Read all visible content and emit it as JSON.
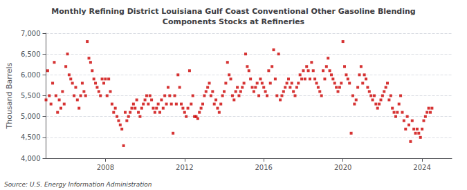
{
  "chart_data": {
    "type": "scatter",
    "title": "Monthly Refining District Louisiana Gulf Coast Conventional Other Gasoline Blending\nComponents Stocks at Refineries",
    "ylabel": "Thousand Barrels",
    "annotations": [
      "Source: U.S. Energy Information Administration"
    ],
    "color": "#cc0000",
    "marker": "square",
    "grid": true,
    "ylim": [
      4000,
      7000
    ],
    "yticks": [
      {
        "value": 4000,
        "label": "4,000"
      },
      {
        "value": 4500,
        "label": "4,500"
      },
      {
        "value": 5000,
        "label": "5,000"
      },
      {
        "value": 5500,
        "label": "5,500"
      },
      {
        "value": 6000,
        "label": "6,000"
      },
      {
        "value": 6500,
        "label": "6,500"
      },
      {
        "value": 7000,
        "label": "7,000"
      }
    ],
    "xlim": [
      2005.0,
      2025.5
    ],
    "xticks": [
      2008,
      2012,
      2016,
      2020,
      2024
    ],
    "x": [
      2005.0,
      2005.083,
      2005.167,
      2005.25,
      2005.333,
      2005.417,
      2005.5,
      2005.583,
      2005.667,
      2005.75,
      2005.833,
      2005.917,
      2006.0,
      2006.083,
      2006.167,
      2006.25,
      2006.333,
      2006.417,
      2006.5,
      2006.583,
      2006.667,
      2006.75,
      2006.833,
      2006.917,
      2007.0,
      2007.083,
      2007.167,
      2007.25,
      2007.333,
      2007.417,
      2007.5,
      2007.583,
      2007.667,
      2007.75,
      2007.833,
      2007.917,
      2008.0,
      2008.083,
      2008.167,
      2008.25,
      2008.333,
      2008.417,
      2008.5,
      2008.583,
      2008.667,
      2008.75,
      2008.833,
      2008.917,
      2009.0,
      2009.083,
      2009.167,
      2009.25,
      2009.333,
      2009.417,
      2009.5,
      2009.583,
      2009.667,
      2009.75,
      2009.833,
      2009.917,
      2010.0,
      2010.083,
      2010.167,
      2010.25,
      2010.333,
      2010.417,
      2010.5,
      2010.583,
      2010.667,
      2010.75,
      2010.833,
      2010.917,
      2011.0,
      2011.083,
      2011.167,
      2011.25,
      2011.333,
      2011.417,
      2011.5,
      2011.583,
      2011.667,
      2011.75,
      2011.833,
      2011.917,
      2012.0,
      2012.083,
      2012.167,
      2012.25,
      2012.333,
      2012.417,
      2012.5,
      2012.583,
      2012.667,
      2012.75,
      2012.833,
      2012.917,
      2013.0,
      2013.083,
      2013.167,
      2013.25,
      2013.333,
      2013.417,
      2013.5,
      2013.583,
      2013.667,
      2013.75,
      2013.833,
      2013.917,
      2014.0,
      2014.083,
      2014.167,
      2014.25,
      2014.333,
      2014.417,
      2014.5,
      2014.583,
      2014.667,
      2014.75,
      2014.833,
      2014.917,
      2015.0,
      2015.083,
      2015.167,
      2015.25,
      2015.333,
      2015.417,
      2015.5,
      2015.583,
      2015.667,
      2015.75,
      2015.833,
      2015.917,
      2016.0,
      2016.083,
      2016.167,
      2016.25,
      2016.333,
      2016.417,
      2016.5,
      2016.583,
      2016.667,
      2016.75,
      2016.833,
      2016.917,
      2017.0,
      2017.083,
      2017.167,
      2017.25,
      2017.333,
      2017.417,
      2017.5,
      2017.583,
      2017.667,
      2017.75,
      2017.833,
      2017.917,
      2018.0,
      2018.083,
      2018.167,
      2018.25,
      2018.333,
      2018.417,
      2018.5,
      2018.583,
      2018.667,
      2018.75,
      2018.833,
      2018.917,
      2019.0,
      2019.083,
      2019.167,
      2019.25,
      2019.333,
      2019.417,
      2019.5,
      2019.583,
      2019.667,
      2019.75,
      2019.833,
      2019.917,
      2020.0,
      2020.083,
      2020.167,
      2020.25,
      2020.333,
      2020.417,
      2020.5,
      2020.583,
      2020.667,
      2020.75,
      2020.833,
      2020.917,
      2021.0,
      2021.083,
      2021.167,
      2021.25,
      2021.333,
      2021.417,
      2021.5,
      2021.583,
      2021.667,
      2021.75,
      2021.833,
      2021.917,
      2022.0,
      2022.083,
      2022.167,
      2022.25,
      2022.333,
      2022.417,
      2022.5,
      2022.583,
      2022.667,
      2022.75,
      2022.833,
      2022.917,
      2023.0,
      2023.083,
      2023.167,
      2023.25,
      2023.333,
      2023.417,
      2023.5,
      2023.583,
      2023.667,
      2023.75,
      2023.833,
      2023.917,
      2024.0,
      2024.083,
      2024.167,
      2024.25,
      2024.333,
      2024.417,
      2024.5
    ],
    "values": [
      5400,
      6100,
      5500,
      5300,
      5800,
      6300,
      5500,
      5100,
      5400,
      5200,
      5600,
      5300,
      6200,
      6500,
      6000,
      5900,
      5800,
      5500,
      5700,
      5400,
      5200,
      5500,
      5800,
      5600,
      5500,
      6800,
      6400,
      6300,
      6100,
      5900,
      5800,
      5700,
      5600,
      5500,
      5900,
      5800,
      5900,
      5500,
      5900,
      5600,
      5300,
      5100,
      5200,
      5000,
      4900,
      4800,
      4700,
      4300,
      5100,
      4900,
      5000,
      5100,
      5200,
      5300,
      5200,
      5400,
      5100,
      5000,
      5200,
      5300,
      5400,
      5500,
      5300,
      5500,
      5400,
      5200,
      5100,
      5200,
      5300,
      5100,
      5400,
      5200,
      5500,
      5300,
      5700,
      5500,
      5300,
      4600,
      5500,
      5300,
      6000,
      5700,
      5300,
      5200,
      5100,
      5000,
      5200,
      6100,
      5300,
      5500,
      5000,
      5000,
      4950,
      5100,
      5200,
      5300,
      5500,
      5600,
      5700,
      5800,
      5500,
      5600,
      5300,
      5400,
      5200,
      5100,
      5300,
      5500,
      5600,
      5800,
      6300,
      6000,
      5900,
      5500,
      5400,
      5600,
      5700,
      5500,
      5600,
      5700,
      5800,
      6500,
      6200,
      6100,
      5900,
      5700,
      5600,
      5700,
      5800,
      5500,
      5900,
      5800,
      5700,
      5600,
      5500,
      6100,
      5800,
      6200,
      6600,
      5900,
      5500,
      6500,
      5400,
      5500,
      5600,
      5700,
      5800,
      5900,
      5700,
      5800,
      5600,
      5500,
      5700,
      5800,
      6000,
      5900,
      6100,
      5900,
      6200,
      6100,
      5900,
      6300,
      6100,
      5900,
      5800,
      5700,
      5600,
      5500,
      6100,
      5900,
      6200,
      6400,
      6100,
      6000,
      5900,
      5800,
      5700,
      5600,
      5700,
      5800,
      6800,
      6200,
      6000,
      5900,
      5800,
      4600,
      5500,
      5300,
      5400,
      5700,
      6000,
      6200,
      5800,
      6000,
      5900,
      5700,
      5600,
      5500,
      5400,
      5500,
      5300,
      5200,
      5300,
      5400,
      5500,
      5600,
      5700,
      5800,
      5400,
      5500,
      5200,
      5100,
      5000,
      5100,
      5300,
      5500,
      5100,
      4900,
      4700,
      5000,
      4800,
      4400,
      4900,
      4700,
      4600,
      4700,
      4600,
      4500,
      4700,
      4900,
      5000,
      5100,
      5200,
      5100,
      5200
    ]
  }
}
